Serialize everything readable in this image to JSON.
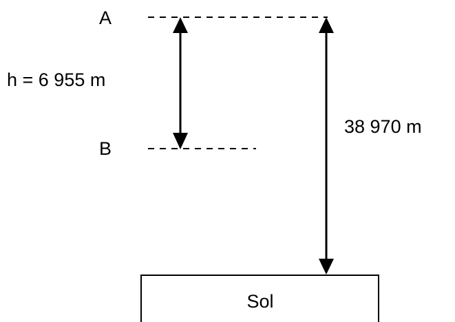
{
  "points": [
    {
      "label": "A"
    },
    {
      "label": "B"
    }
  ],
  "dimensions": [
    {
      "label": "h = 6 955 m"
    },
    {
      "label": "38 970 m"
    }
  ],
  "ground": {
    "label": "Sol"
  }
}
